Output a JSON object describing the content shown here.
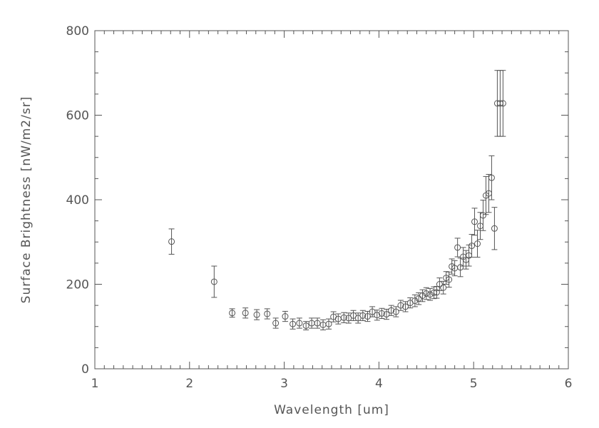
{
  "chart_data": {
    "type": "scatter",
    "xlabel": "Wavelength [um]",
    "ylabel": "Surface Brightness [nW/m2/sr]",
    "xlim": [
      1,
      6
    ],
    "ylim": [
      0,
      800
    ],
    "x_ticks": [
      "1",
      "2",
      "3",
      "4",
      "5",
      "6"
    ],
    "y_ticks": [
      "0",
      "200",
      "400",
      "600",
      "800"
    ],
    "grid": false,
    "marker": "open-circle",
    "error_bars": true,
    "x": [
      1.81,
      2.26,
      2.45,
      2.59,
      2.71,
      2.82,
      2.91,
      3.01,
      3.09,
      3.16,
      3.23,
      3.29,
      3.35,
      3.41,
      3.47,
      3.52,
      3.57,
      3.63,
      3.68,
      3.73,
      3.78,
      3.83,
      3.88,
      3.93,
      3.98,
      4.03,
      4.08,
      4.13,
      4.18,
      4.23,
      4.28,
      4.33,
      4.38,
      4.42,
      4.46,
      4.5,
      4.54,
      4.58,
      4.61,
      4.64,
      4.68,
      4.71,
      4.74,
      4.77,
      4.8,
      4.83,
      4.86,
      4.89,
      4.92,
      4.95,
      4.98,
      5.01,
      5.04,
      5.07,
      5.1,
      5.13,
      5.16,
      5.19,
      5.22,
      5.25,
      5.28,
      5.31
    ],
    "y": [
      301,
      206,
      132,
      132,
      128,
      130,
      108,
      124,
      106,
      108,
      102,
      108,
      108,
      104,
      106,
      123,
      118,
      121,
      120,
      126,
      120,
      126,
      124,
      135,
      127,
      131,
      129,
      138,
      135,
      150,
      147,
      156,
      161,
      166,
      173,
      178,
      176,
      180,
      181,
      200,
      192,
      215,
      211,
      242,
      238,
      287,
      240,
      265,
      258,
      268,
      291,
      348,
      296,
      338,
      363,
      410,
      415,
      452,
      332,
      628,
      628,
      628
    ],
    "err": [
      30,
      37,
      10,
      12,
      12,
      12,
      12,
      12,
      12,
      12,
      10,
      12,
      12,
      12,
      12,
      12,
      12,
      12,
      12,
      12,
      12,
      12,
      12,
      12,
      12,
      12,
      12,
      12,
      12,
      12,
      12,
      12,
      14,
      14,
      14,
      14,
      14,
      14,
      14,
      15,
      15,
      15,
      18,
      18,
      18,
      22,
      22,
      22,
      22,
      25,
      27,
      32,
      32,
      32,
      36,
      45,
      45,
      52,
      50,
      78,
      78,
      78
    ]
  }
}
